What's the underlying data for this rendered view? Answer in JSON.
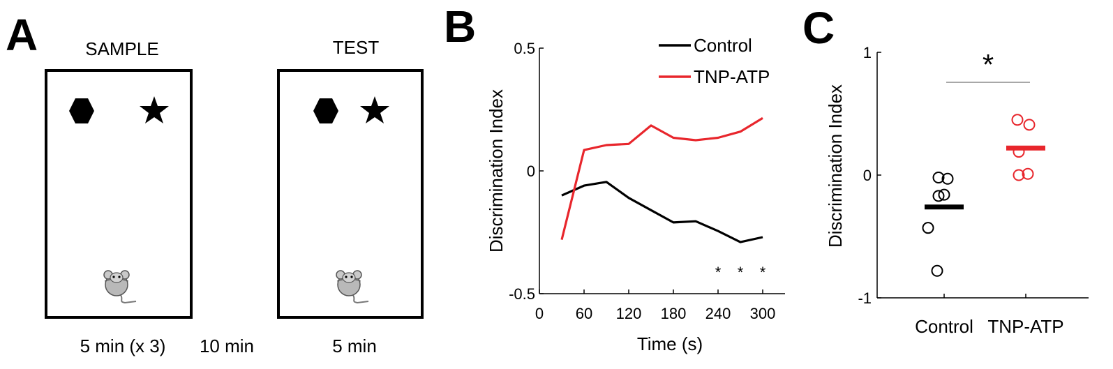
{
  "panels": {
    "a": "A",
    "b": "B",
    "c": "C"
  },
  "schematic": {
    "sample_title": "SAMPLE",
    "test_title": "TEST",
    "sample_duration": "5 min (x 3)",
    "interval": "10 min",
    "test_duration": "5 min",
    "icons": [
      "hexagon-icon",
      "star-icon",
      "mouse-icon"
    ]
  },
  "colors": {
    "control": "#000000",
    "tnp": "#e8262c",
    "sig_line": "#8c8c8c"
  },
  "chart_data": [
    {
      "type": "line",
      "panel": "B",
      "title": "",
      "xlabel": "Time (s)",
      "ylabel": "Discrimination Index",
      "xlim": [
        0,
        330
      ],
      "ylim": [
        -0.5,
        0.5
      ],
      "x_ticks": [
        0,
        60,
        120,
        180,
        240,
        300
      ],
      "y_ticks": [
        -0.5,
        0,
        0.5
      ],
      "y_tick_labels": [
        "-0.5",
        "0",
        "0.5"
      ],
      "x": [
        30,
        60,
        90,
        120,
        150,
        180,
        210,
        240,
        270,
        300
      ],
      "series": [
        {
          "name": "Control",
          "color": "#000000",
          "values": [
            -0.1,
            -0.06,
            -0.045,
            -0.11,
            -0.16,
            -0.21,
            -0.205,
            -0.245,
            -0.29,
            -0.27
          ]
        },
        {
          "name": "TNP-ATP",
          "color": "#e8262c",
          "values": [
            -0.28,
            0.085,
            0.105,
            0.11,
            0.185,
            0.135,
            0.125,
            0.135,
            0.16,
            0.215
          ]
        }
      ],
      "legend": [
        "Control",
        "TNP-ATP"
      ],
      "legend_position": "top-right",
      "annotations": [
        {
          "x": 240,
          "y": -0.4,
          "text": "*"
        },
        {
          "x": 270,
          "y": -0.4,
          "text": "*"
        },
        {
          "x": 300,
          "y": -0.4,
          "text": "*"
        }
      ]
    },
    {
      "type": "scatter",
      "panel": "C",
      "title": "",
      "xlabel": "",
      "ylabel": "Discrimination Index",
      "categories": [
        "Control",
        "TNP-ATP"
      ],
      "ylim": [
        -1,
        1
      ],
      "y_ticks": [
        -1,
        0,
        1
      ],
      "y_tick_labels": [
        "-1",
        "0",
        "1"
      ],
      "series": [
        {
          "name": "Control",
          "color": "#000000",
          "points": [
            -0.02,
            -0.03,
            -0.16,
            -0.17,
            -0.43,
            -0.78
          ],
          "mean": -0.26
        },
        {
          "name": "TNP-ATP",
          "color": "#e8262c",
          "points": [
            0.45,
            0.41,
            0.19,
            0.01,
            0.0
          ],
          "mean": 0.22
        }
      ],
      "significance": "*"
    }
  ]
}
